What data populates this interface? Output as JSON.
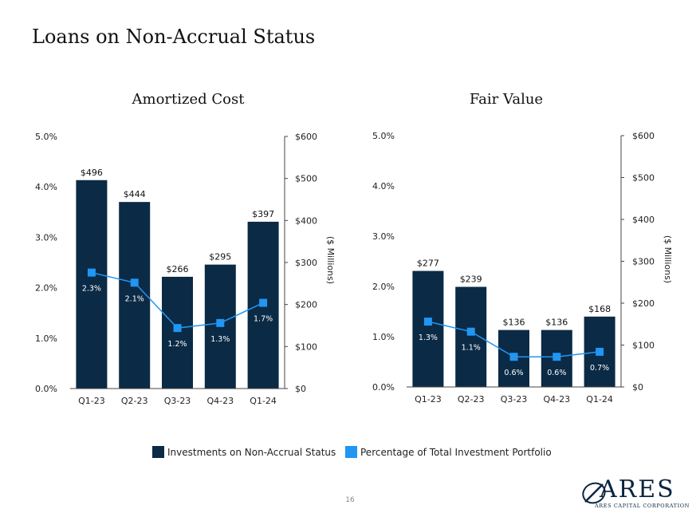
{
  "page": {
    "title": "Loans on Non-Accrual Status",
    "page_number": "16",
    "logo_text": "ARES",
    "logo_subtext": "ARES CAPITAL CORPORATION"
  },
  "legend": {
    "bar_label": "Investments on Non-Accrual Status",
    "line_label": "Percentage of Total Investment Portfolio"
  },
  "colors": {
    "bar": "#0b2a45",
    "line": "#2196f3",
    "marker": "#2196f3",
    "axis": "#444444"
  },
  "chart_data": [
    {
      "type": "bar",
      "title": "Amortized Cost",
      "categories": [
        "Q1-23",
        "Q2-23",
        "Q3-23",
        "Q4-23",
        "Q1-24"
      ],
      "y2label": "($ Millions)",
      "series": [
        {
          "name": "Investments on Non-Accrual Status",
          "kind": "bar",
          "axis": "right",
          "values": [
            496,
            444,
            266,
            295,
            397
          ],
          "labels": [
            "$496",
            "$444",
            "$266",
            "$295",
            "$397"
          ]
        },
        {
          "name": "Percentage of Total Investment Portfolio",
          "kind": "line",
          "axis": "left",
          "values": [
            2.3,
            2.1,
            1.2,
            1.3,
            1.7
          ],
          "labels": [
            "2.3%",
            "2.1%",
            "1.2%",
            "1.3%",
            "1.7%"
          ]
        }
      ],
      "ylim": [
        0,
        5
      ],
      "yticks": [
        "0.0%",
        "1.0%",
        "2.0%",
        "3.0%",
        "4.0%",
        "5.0%"
      ],
      "y2lim": [
        0,
        600
      ],
      "y2ticks": [
        "$0",
        "$100",
        "$200",
        "$300",
        "$400",
        "$500",
        "$600"
      ]
    },
    {
      "type": "bar",
      "title": "Fair Value",
      "categories": [
        "Q1-23",
        "Q2-23",
        "Q3-23",
        "Q4-23",
        "Q1-24"
      ],
      "y2label": "($ Millions)",
      "series": [
        {
          "name": "Investments on Non-Accrual Status",
          "kind": "bar",
          "axis": "right",
          "values": [
            277,
            239,
            136,
            136,
            168
          ],
          "labels": [
            "$277",
            "$239",
            "$136",
            "$136",
            "$168"
          ]
        },
        {
          "name": "Percentage of Total Investment Portfolio",
          "kind": "line",
          "axis": "left",
          "values": [
            1.3,
            1.1,
            0.6,
            0.6,
            0.7
          ],
          "labels": [
            "1.3%",
            "1.1%",
            "0.6%",
            "0.6%",
            "0.7%"
          ]
        }
      ],
      "ylim": [
        0,
        5
      ],
      "yticks": [
        "0.0%",
        "1.0%",
        "2.0%",
        "3.0%",
        "4.0%",
        "5.0%"
      ],
      "y2lim": [
        0,
        600
      ],
      "y2ticks": [
        "$0",
        "$100",
        "$200",
        "$300",
        "$400",
        "$500",
        "$600"
      ]
    }
  ]
}
